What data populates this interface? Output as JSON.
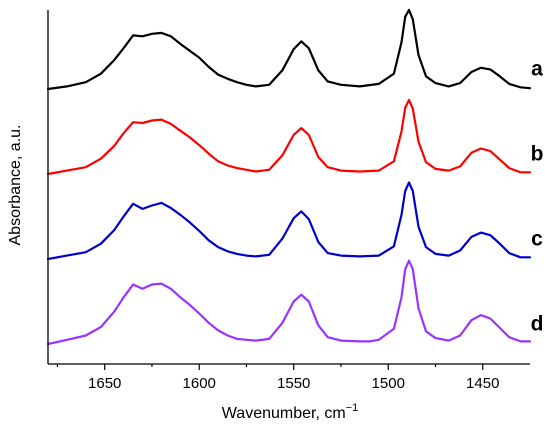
{
  "chart_data": {
    "type": "line",
    "xlabel": "Wavenumber, cm",
    "xlabel_sup": "−1",
    "ylabel": "Absorbance, a.u.",
    "xlim": [
      1680,
      1425
    ],
    "x_reversed": true,
    "xticks": [
      1650,
      1600,
      1550,
      1500,
      1450
    ],
    "y_ticks_shown": false,
    "series": [
      {
        "name": "a",
        "color": "#000000",
        "offset": 3.0,
        "points": [
          [
            1680,
            0.0
          ],
          [
            1670,
            0.03
          ],
          [
            1660,
            0.08
          ],
          [
            1652,
            0.18
          ],
          [
            1645,
            0.34
          ],
          [
            1640,
            0.48
          ],
          [
            1635,
            0.63
          ],
          [
            1630,
            0.62
          ],
          [
            1625,
            0.65
          ],
          [
            1620,
            0.66
          ],
          [
            1615,
            0.62
          ],
          [
            1610,
            0.53
          ],
          [
            1605,
            0.45
          ],
          [
            1600,
            0.37
          ],
          [
            1595,
            0.26
          ],
          [
            1590,
            0.17
          ],
          [
            1585,
            0.12
          ],
          [
            1580,
            0.08
          ],
          [
            1575,
            0.05
          ],
          [
            1570,
            0.03
          ],
          [
            1563,
            0.05
          ],
          [
            1556,
            0.22
          ],
          [
            1550,
            0.47
          ],
          [
            1546,
            0.56
          ],
          [
            1542,
            0.48
          ],
          [
            1537,
            0.22
          ],
          [
            1532,
            0.09
          ],
          [
            1525,
            0.05
          ],
          [
            1515,
            0.03
          ],
          [
            1505,
            0.06
          ],
          [
            1497,
            0.18
          ],
          [
            1493,
            0.55
          ],
          [
            1491,
            0.85
          ],
          [
            1489,
            0.93
          ],
          [
            1487,
            0.82
          ],
          [
            1484,
            0.4
          ],
          [
            1480,
            0.15
          ],
          [
            1475,
            0.07
          ],
          [
            1468,
            0.03
          ],
          [
            1462,
            0.07
          ],
          [
            1456,
            0.2
          ],
          [
            1451,
            0.25
          ],
          [
            1446,
            0.23
          ],
          [
            1441,
            0.15
          ],
          [
            1436,
            0.06
          ],
          [
            1430,
            0.02
          ],
          [
            1425,
            0.01
          ]
        ]
      },
      {
        "name": "b",
        "color": "#ff0000",
        "offset": 2.0,
        "points": [
          [
            1680,
            0.0
          ],
          [
            1670,
            0.04
          ],
          [
            1660,
            0.08
          ],
          [
            1652,
            0.18
          ],
          [
            1645,
            0.33
          ],
          [
            1640,
            0.48
          ],
          [
            1635,
            0.61
          ],
          [
            1630,
            0.6
          ],
          [
            1625,
            0.63
          ],
          [
            1620,
            0.64
          ],
          [
            1615,
            0.59
          ],
          [
            1610,
            0.51
          ],
          [
            1605,
            0.43
          ],
          [
            1600,
            0.34
          ],
          [
            1595,
            0.24
          ],
          [
            1590,
            0.15
          ],
          [
            1585,
            0.1
          ],
          [
            1580,
            0.07
          ],
          [
            1575,
            0.05
          ],
          [
            1570,
            0.03
          ],
          [
            1563,
            0.05
          ],
          [
            1556,
            0.22
          ],
          [
            1550,
            0.46
          ],
          [
            1546,
            0.54
          ],
          [
            1542,
            0.46
          ],
          [
            1537,
            0.2
          ],
          [
            1532,
            0.08
          ],
          [
            1525,
            0.04
          ],
          [
            1515,
            0.03
          ],
          [
            1505,
            0.04
          ],
          [
            1497,
            0.15
          ],
          [
            1493,
            0.5
          ],
          [
            1491,
            0.78
          ],
          [
            1489,
            0.87
          ],
          [
            1487,
            0.77
          ],
          [
            1484,
            0.38
          ],
          [
            1480,
            0.14
          ],
          [
            1475,
            0.06
          ],
          [
            1468,
            0.04
          ],
          [
            1462,
            0.09
          ],
          [
            1456,
            0.25
          ],
          [
            1451,
            0.3
          ],
          [
            1446,
            0.27
          ],
          [
            1441,
            0.17
          ],
          [
            1436,
            0.07
          ],
          [
            1430,
            0.02
          ],
          [
            1425,
            0.02
          ]
        ]
      },
      {
        "name": "c",
        "color": "#0000cc",
        "offset": 1.0,
        "points": [
          [
            1680,
            0.0
          ],
          [
            1670,
            0.04
          ],
          [
            1660,
            0.08
          ],
          [
            1652,
            0.18
          ],
          [
            1645,
            0.34
          ],
          [
            1640,
            0.5
          ],
          [
            1635,
            0.65
          ],
          [
            1630,
            0.59
          ],
          [
            1625,
            0.63
          ],
          [
            1620,
            0.66
          ],
          [
            1615,
            0.6
          ],
          [
            1610,
            0.52
          ],
          [
            1605,
            0.43
          ],
          [
            1600,
            0.33
          ],
          [
            1595,
            0.22
          ],
          [
            1590,
            0.14
          ],
          [
            1585,
            0.09
          ],
          [
            1580,
            0.06
          ],
          [
            1575,
            0.04
          ],
          [
            1570,
            0.03
          ],
          [
            1563,
            0.05
          ],
          [
            1556,
            0.24
          ],
          [
            1550,
            0.48
          ],
          [
            1546,
            0.56
          ],
          [
            1542,
            0.47
          ],
          [
            1537,
            0.2
          ],
          [
            1532,
            0.07
          ],
          [
            1525,
            0.04
          ],
          [
            1515,
            0.03
          ],
          [
            1505,
            0.04
          ],
          [
            1497,
            0.15
          ],
          [
            1493,
            0.52
          ],
          [
            1491,
            0.8
          ],
          [
            1489,
            0.9
          ],
          [
            1487,
            0.8
          ],
          [
            1484,
            0.38
          ],
          [
            1480,
            0.14
          ],
          [
            1475,
            0.06
          ],
          [
            1468,
            0.04
          ],
          [
            1462,
            0.1
          ],
          [
            1456,
            0.26
          ],
          [
            1451,
            0.31
          ],
          [
            1446,
            0.28
          ],
          [
            1441,
            0.18
          ],
          [
            1436,
            0.07
          ],
          [
            1430,
            0.02
          ],
          [
            1425,
            0.02
          ]
        ]
      },
      {
        "name": "d",
        "color": "#9933ff",
        "offset": 0.0,
        "points": [
          [
            1680,
            0.0
          ],
          [
            1670,
            0.05
          ],
          [
            1660,
            0.1
          ],
          [
            1652,
            0.2
          ],
          [
            1645,
            0.38
          ],
          [
            1640,
            0.55
          ],
          [
            1635,
            0.7
          ],
          [
            1630,
            0.65
          ],
          [
            1625,
            0.7
          ],
          [
            1620,
            0.71
          ],
          [
            1615,
            0.65
          ],
          [
            1610,
            0.55
          ],
          [
            1605,
            0.46
          ],
          [
            1600,
            0.36
          ],
          [
            1595,
            0.25
          ],
          [
            1590,
            0.16
          ],
          [
            1585,
            0.1
          ],
          [
            1580,
            0.06
          ],
          [
            1575,
            0.05
          ],
          [
            1570,
            0.04
          ],
          [
            1563,
            0.06
          ],
          [
            1556,
            0.25
          ],
          [
            1550,
            0.5
          ],
          [
            1546,
            0.58
          ],
          [
            1542,
            0.5
          ],
          [
            1537,
            0.22
          ],
          [
            1532,
            0.08
          ],
          [
            1525,
            0.04
          ],
          [
            1515,
            0.03
          ],
          [
            1510,
            0.03
          ],
          [
            1505,
            0.05
          ],
          [
            1497,
            0.18
          ],
          [
            1493,
            0.55
          ],
          [
            1491,
            0.88
          ],
          [
            1489,
            0.98
          ],
          [
            1487,
            0.88
          ],
          [
            1484,
            0.42
          ],
          [
            1480,
            0.15
          ],
          [
            1475,
            0.07
          ],
          [
            1468,
            0.04
          ],
          [
            1462,
            0.1
          ],
          [
            1456,
            0.28
          ],
          [
            1451,
            0.34
          ],
          [
            1446,
            0.3
          ],
          [
            1441,
            0.19
          ],
          [
            1436,
            0.08
          ],
          [
            1430,
            0.03
          ],
          [
            1425,
            0.03
          ]
        ]
      }
    ]
  }
}
